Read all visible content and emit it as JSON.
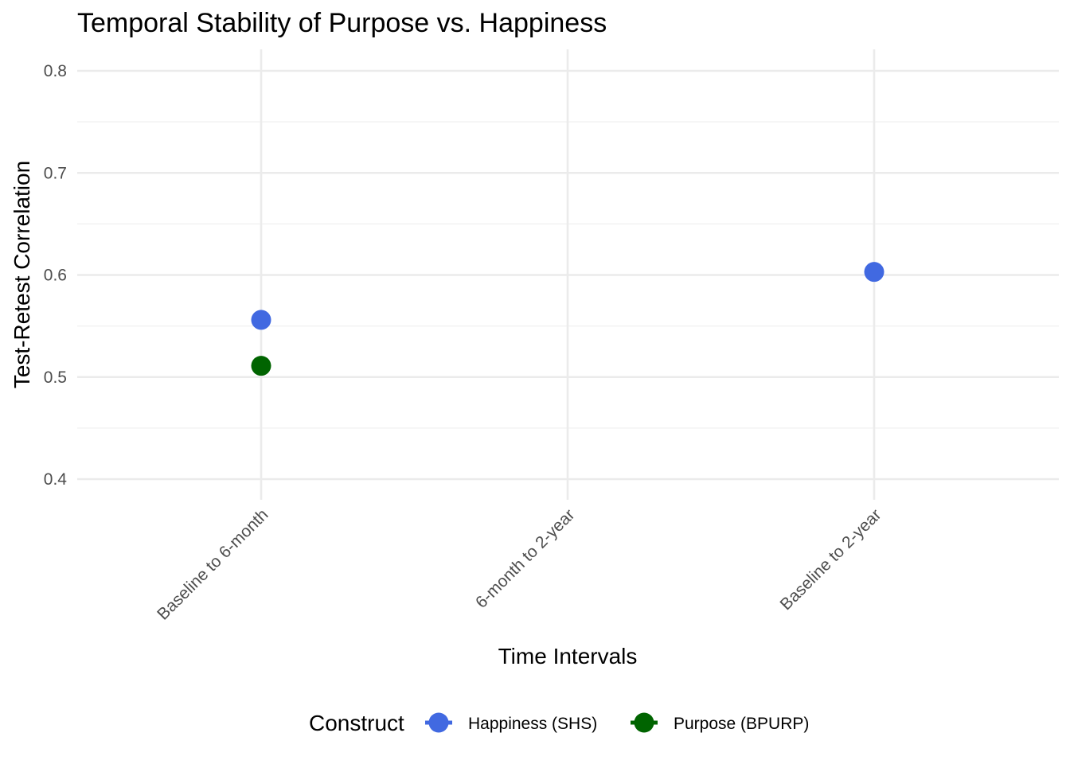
{
  "chart_data": {
    "type": "scatter",
    "title": "Temporal Stability of Purpose vs. Happiness",
    "xlabel": "Time Intervals",
    "ylabel": "Test-Retest Correlation",
    "categories": [
      "Baseline to 6-month",
      "6-month to 2-year",
      "Baseline to 2-year"
    ],
    "ylim": [
      0.38,
      0.82
    ],
    "yticks": [
      0.4,
      0.5,
      0.6,
      0.7,
      0.8
    ],
    "ytick_labels": [
      "0.4",
      "0.5",
      "0.6",
      "0.7",
      "0.8"
    ],
    "grid": true,
    "legend": {
      "title": "Construct",
      "position": "bottom"
    },
    "series": [
      {
        "name": "Happiness (SHS)",
        "color": "#4169E1",
        "values": [
          0.556,
          null,
          0.603
        ]
      },
      {
        "name": "Purpose (BPURP)",
        "color": "#006400",
        "values": [
          0.511,
          null,
          null
        ]
      }
    ]
  }
}
